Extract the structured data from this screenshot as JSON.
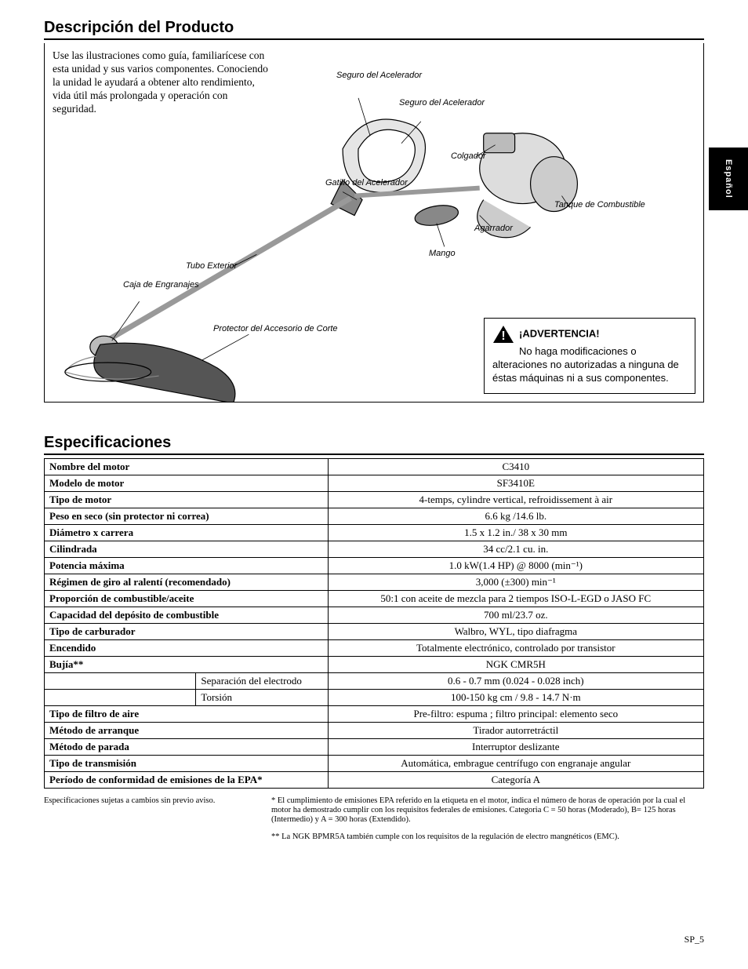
{
  "side_tab": "Español",
  "page_num": "SP_5",
  "description": {
    "title": "Descripción del Producto",
    "intro": "Use las ilustraciones como guía, familiarícese con esta unidad y sus varios componentes.  Conociendo la unidad le ayudará a obtener alto rendimiento, vida útil más prolongada y operación con seguridad.",
    "callouts": {
      "seguro1": "Seguro del\nAcelerador",
      "seguro2": "Seguro del\nAcelerador",
      "colgador": "Colgador",
      "gatillo": "Gatillo del\nAcelerador",
      "tanque": "Tanque de\nCombustible",
      "agarrador": "Agarrador",
      "mango": "Mango",
      "tubo": "Tubo Exterior",
      "caja": "Caja de\nEngranajes",
      "protector": "Protector del\nAccesorio de Corte"
    },
    "warning": {
      "head": "¡ADVERTENCIA!",
      "body": "No haga modificaciones o alteraciones  no autorizadas a ninguna de éstas máquinas ni a sus componentes."
    }
  },
  "specs": {
    "title": "Especificaciones",
    "rows": [
      {
        "label": "Nombre del motor",
        "val": "C3410"
      },
      {
        "label": "Modelo de motor",
        "val": "SF3410E"
      },
      {
        "label": "Tipo de motor",
        "val": "4-temps, cylindre vertical, refroidissement à air"
      },
      {
        "label": "Peso en seco (sin protector ni correa)",
        "val": "6.6 kg /14.6 lb."
      },
      {
        "label": "Diámetro x carrera",
        "val": "1.5 x 1.2 in./ 38 x 30 mm"
      },
      {
        "label": "Cilindrada",
        "val": "34 cc/2.1 cu. in."
      },
      {
        "label": "Potencia máxima",
        "val": "1.0 kW(1.4 HP) @ 8000 (min⁻¹)"
      },
      {
        "label": "Régimen de giro al ralentí (recomendado)",
        "val": "3,000 (±300) min⁻¹"
      },
      {
        "label": "Proporción de combustible/aceite",
        "val": "50:1 con aceite de mezcla para 2 tiempos ISO-L-EGD o JASO FC"
      },
      {
        "label": "Capacidad del depósito de combustible",
        "val": "700 ml/23.7 oz."
      },
      {
        "label": "Tipo de carburador",
        "val": "Walbro, WYL, tipo diafragma"
      },
      {
        "label": "Encendido",
        "val": "Totalmente electrónico, controlado por transistor"
      },
      {
        "label": "Bujía**",
        "val": "NGK CMR5H"
      }
    ],
    "subrows": [
      {
        "label": "Separación del electrodo",
        "val": "0.6 - 0.7 mm (0.024 - 0.028 inch)"
      },
      {
        "label": "Torsión",
        "val": "100-150 kg cm / 9.8 - 14.7 N·m"
      }
    ],
    "rows2": [
      {
        "label": "Tipo de filtro de aire",
        "val": "Pre-filtro: espuma ; filtro principal: elemento seco"
      },
      {
        "label": "Método de arranque",
        "val": "Tirador autorretráctil"
      },
      {
        "label": "Método de parada",
        "val": "Interruptor deslizante"
      },
      {
        "label": "Tipo de transmisión",
        "val": "Automática, embrague centrífugo con engranaje angular"
      },
      {
        "label": "Período de conformidad de emisiones de la EPA*",
        "val": "Categoría A"
      }
    ],
    "footnote_left": "Especificaciones sujetas a cambios sin previo aviso.",
    "footnote_r1": "* El cumplimiento de emisiones EPA referido en la etiqueta en el motor, indica el número de horas de operación por la cual el motor ha demostrado cumplir con los requisitos federales de emisiones.  Categoria C = 50 horas (Moderado), B= 125 horas (Intermedio) y A = 300 horas (Extendido).",
    "footnote_r2": "** La NGK BPMR5A también cumple con los requisitos de la regulación de electro  mangnéticos (EMC)."
  }
}
